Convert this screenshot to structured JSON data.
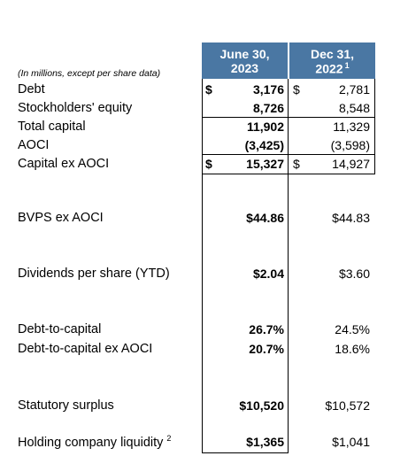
{
  "header": {
    "note": "(In millions, except per share data)",
    "columns": [
      {
        "line1": "June 30,",
        "line2": "2023"
      },
      {
        "line1": "Dec 31,",
        "line2": "2022",
        "sup": "1"
      }
    ]
  },
  "rows": [
    {
      "label": "Debt",
      "cells": [
        {
          "sign": "$",
          "text": "3,176"
        },
        {
          "sign": "$",
          "text": "2,781"
        }
      ]
    },
    {
      "label": "Stockholders' equity",
      "cells": [
        {
          "text": "8,726"
        },
        {
          "text": "8,548"
        }
      ]
    },
    {
      "label": "Total capital",
      "cells": [
        {
          "text": "11,902"
        },
        {
          "text": "11,329"
        }
      ]
    },
    {
      "label": "AOCI",
      "cells": [
        {
          "text": "(3,425)"
        },
        {
          "text": "(3,598)"
        }
      ]
    },
    {
      "label": "Capital ex AOCI",
      "cells": [
        {
          "sign": "$",
          "text": "15,327"
        },
        {
          "sign": "$",
          "text": "14,927"
        }
      ]
    },
    {
      "label": "BVPS ex AOCI",
      "cells": [
        {
          "text": "$44.86"
        },
        {
          "text": "$44.83"
        }
      ]
    },
    {
      "label": "Dividends per share (YTD)",
      "cells": [
        {
          "text": "$2.04"
        },
        {
          "text": "$3.60"
        }
      ]
    },
    {
      "label": "Debt-to-capital",
      "cells": [
        {
          "text": "26.7%"
        },
        {
          "text": "24.5%"
        }
      ]
    },
    {
      "label": "Debt-to-capital ex AOCI",
      "cells": [
        {
          "text": "20.7%"
        },
        {
          "text": "18.6%"
        }
      ]
    },
    {
      "label": "Statutory surplus",
      "cells": [
        {
          "text": "$10,520"
        },
        {
          "text": "$10,572"
        }
      ]
    },
    {
      "label": "Holding company liquidity",
      "sup": "2",
      "cells": [
        {
          "text": "$1,365"
        },
        {
          "text": "$1,041"
        }
      ]
    }
  ]
}
